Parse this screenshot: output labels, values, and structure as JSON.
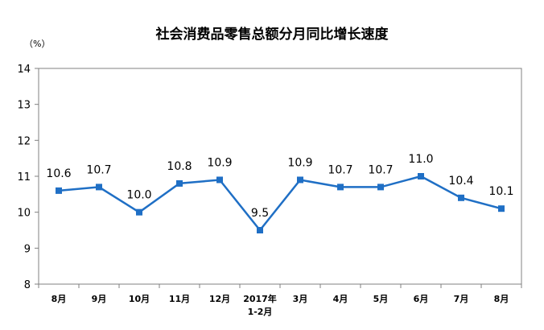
{
  "chart_data": {
    "type": "line",
    "title": "社会消费品零售总额分月同比增长速度",
    "yunit": "（%）",
    "ylim": [
      8,
      14
    ],
    "yticks": [
      "8",
      "9",
      "10",
      "11",
      "12",
      "13",
      "14"
    ],
    "categories": [
      [
        "8月"
      ],
      [
        "9月"
      ],
      [
        "10月"
      ],
      [
        "11月"
      ],
      [
        "12月"
      ],
      [
        "2017年",
        "1-2月"
      ],
      [
        "3月"
      ],
      [
        "4月"
      ],
      [
        "5月"
      ],
      [
        "6月"
      ],
      [
        "7月"
      ],
      [
        "8月"
      ]
    ],
    "values": [
      10.6,
      10.7,
      10.0,
      10.8,
      10.9,
      9.5,
      10.9,
      10.7,
      10.7,
      11.0,
      10.4,
      10.1
    ],
    "data_labels": [
      "10.6",
      "10.7",
      "10.0",
      "10.8",
      "10.9",
      "9.5",
      "10.9",
      "10.7",
      "10.7",
      "11.0",
      "10.4",
      "10.1"
    ],
    "grid": false,
    "line_color": "#1F6FC5",
    "axis_color": "#808080"
  }
}
